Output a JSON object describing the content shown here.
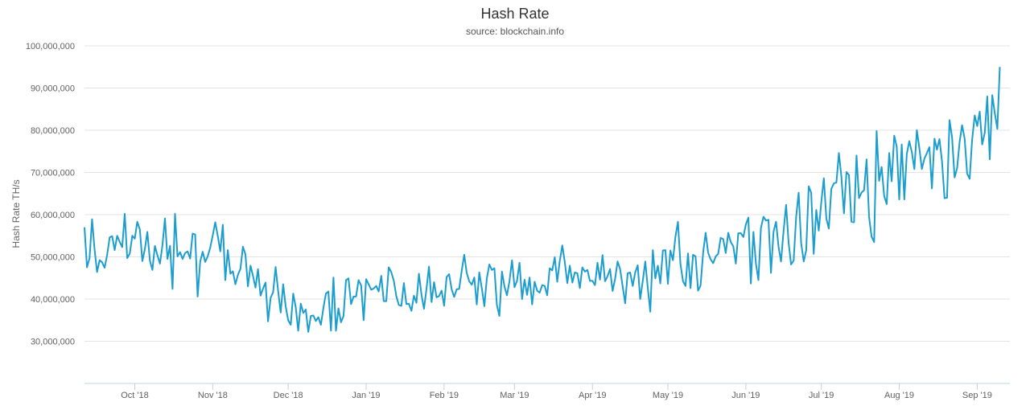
{
  "chart_data": {
    "type": "line",
    "title": "Hash Rate",
    "subtitle": "source: blockchain.info",
    "ylabel": "Hash Rate TH/s",
    "xlabel": "",
    "ylim": [
      20000000,
      100000000
    ],
    "yticks": [
      "30,000,000",
      "40,000,000",
      "50,000,000",
      "60,000,000",
      "70,000,000",
      "80,000,000",
      "90,000,000",
      "100,000,000"
    ],
    "yticks_values": [
      30000000,
      40000000,
      50000000,
      60000000,
      70000000,
      80000000,
      90000000,
      100000000
    ],
    "xticks": [
      "Oct '18",
      "Nov '18",
      "Dec '18",
      "Jan '19",
      "Feb '19",
      "Mar '19",
      "Apr '19",
      "May '19",
      "Jun '19",
      "Jul '19",
      "Aug '19",
      "Sep '19"
    ],
    "x_start": "2018-09-11",
    "x_end": "2019-09-14",
    "grid": "horizontal",
    "legend": "none",
    "line_color": "#1b9ecf",
    "series": [
      {
        "name": "",
        "x_start": "2018-09-11",
        "step_days": 1,
        "values": [
          57.0,
          47.5,
          49.7,
          58.9,
          51.8,
          46.4,
          49.2,
          48.7,
          47.4,
          50.4,
          54.6,
          54.9,
          51.6,
          55.0,
          53.5,
          52.3,
          60.2,
          49.7,
          50.8,
          55.0,
          54.3,
          58.3,
          56.5,
          49.0,
          51.8,
          55.9,
          49.1,
          46.9,
          52.6,
          50.4,
          48.4,
          52.8,
          59.1,
          49.5,
          52.6,
          42.4,
          60.2,
          50.1,
          51.1,
          49.5,
          50.9,
          51.3,
          49.6,
          55.5,
          55.3,
          40.6,
          48.9,
          51.2,
          48.8,
          50.1,
          52.2,
          55.1,
          58.2,
          55.0,
          51.3,
          57.6,
          44.5,
          51.6,
          46.0,
          46.6,
          43.5,
          45.7,
          47.2,
          52.4,
          50.6,
          43.0,
          47.9,
          45.5,
          42.7,
          47.1,
          40.8,
          42.5,
          43.9,
          34.7,
          40.3,
          41.6,
          47.6,
          42.0,
          36.8,
          43.5,
          38.3,
          35.0,
          33.9,
          41.3,
          38.1,
          32.5,
          38.9,
          36.7,
          37.5,
          32.2,
          36.0,
          36.1,
          34.8,
          35.7,
          33.9,
          37.9,
          41.3,
          41.8,
          32.5,
          45.1,
          32.5,
          37.8,
          34.5,
          36.0,
          44.5,
          44.9,
          38.8,
          40.6,
          40.6,
          44.5,
          43.2,
          35.0,
          44.7,
          43.5,
          42.2,
          42.5,
          43.1,
          41.8,
          45.5,
          39.5,
          39.5,
          47.5,
          46.4,
          44.3,
          40.7,
          38.6,
          38.4,
          43.8,
          38.8,
          38.9,
          37.2,
          40.8,
          39.1,
          46.0,
          41.0,
          37.7,
          42.4,
          47.7,
          39.3,
          44.0,
          40.4,
          40.7,
          42.0,
          38.4,
          45.2,
          45.9,
          42.3,
          40.5,
          42.3,
          42.4,
          46.7,
          50.5,
          46.2,
          44.2,
          43.4,
          45.1,
          38.7,
          46.3,
          42.5,
          38.3,
          44.9,
          48.2,
          46.9,
          47.3,
          38.6,
          36.0,
          46.5,
          43.0,
          40.9,
          44.2,
          49.2,
          42.8,
          44.3,
          48.6,
          40.0,
          44.6,
          41.0,
          45.1,
          38.7,
          44.1,
          42.0,
          41.5,
          43.3,
          43.1,
          40.9,
          47.3,
          46.8,
          49.9,
          44.1,
          49.0,
          52.7,
          48.7,
          43.8,
          47.9,
          43.9,
          46.3,
          46.1,
          42.6,
          47.5,
          46.5,
          46.9,
          44.3,
          44.3,
          43.3,
          48.6,
          44.6,
          50.4,
          44.2,
          45.4,
          47.1,
          41.9,
          44.8,
          48.9,
          47.1,
          43.0,
          39.0,
          46.1,
          46.3,
          43.1,
          46.3,
          48.0,
          40.0,
          44.3,
          48.9,
          42.7,
          37.0,
          51.6,
          44.9,
          47.9,
          43.7,
          51.5,
          51.6,
          43.6,
          51.5,
          49.2,
          54.8,
          58.3,
          48.3,
          44.2,
          43.1,
          50.8,
          42.6,
          50.5,
          50.1,
          42.0,
          43.2,
          51.0,
          55.7,
          51.0,
          49.4,
          48.5,
          50.1,
          50.7,
          54.5,
          54.2,
          50.9,
          55.7,
          53.5,
          52.5,
          48.4,
          55.6,
          55.6,
          54.7,
          57.7,
          59.3,
          43.7,
          55.9,
          48.4,
          44.5,
          56.8,
          59.5,
          58.6,
          58.8,
          46.2,
          56.0,
          58.3,
          52.4,
          48.9,
          56.2,
          62.3,
          53.4,
          48.2,
          49.1,
          59.5,
          65.2,
          53.3,
          48.9,
          51.6,
          66.7,
          65.2,
          50.7,
          61.1,
          56.2,
          62.9,
          68.6,
          59.1,
          56.7,
          66.1,
          67.4,
          67.6,
          74.6,
          69.0,
          60.3,
          70.1,
          69.4,
          58.3,
          58.2,
          74.0,
          63.9,
          65.2,
          65.8,
          73.1,
          59.5,
          54.8,
          53.5,
          79.8,
          68.0,
          71.3,
          64.4,
          62.5,
          74.6,
          67.9,
          78.7,
          76.1,
          63.6,
          76.6,
          63.6,
          74.4,
          77.4,
          74.9,
          70.8,
          80.0,
          75.8,
          70.8,
          73.3,
          74.6,
          76.0,
          66.2,
          78.0,
          75.4,
          77.9,
          72.7,
          63.9,
          64.0,
          82.4,
          78.4,
          68.8,
          71.0,
          77.2,
          81.2,
          78.0,
          69.7,
          68.5,
          77.8,
          83.5,
          81.0,
          84.4,
          76.6,
          79.4,
          88.0,
          73.1,
          88.3,
          84.0,
          80.3,
          95.0
        ]
      }
    ]
  }
}
